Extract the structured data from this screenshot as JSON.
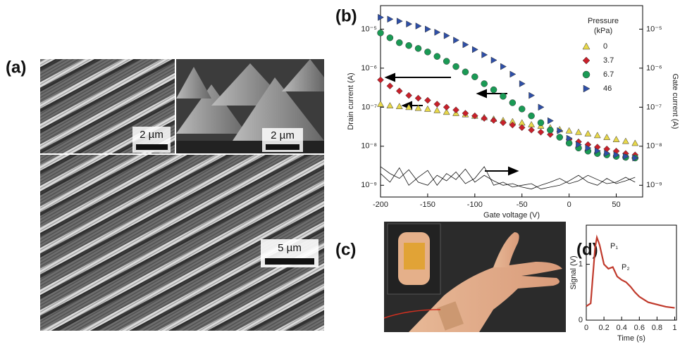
{
  "panels": [
    "(a)",
    "(b)",
    "(c)",
    "(d)"
  ],
  "images": [
    {
      "scale_bar": "2 µm"
    },
    {
      "scale_bar": "2 µm"
    },
    {
      "scale_bar": "5 µm"
    }
  ],
  "chart_data": [
    {
      "type": "scatter",
      "log_scale": true,
      "x_label": "Gate voltage (V)",
      "y_label": "Drain current (A)",
      "y2_label": "Gate current (A)",
      "legend_title": [
        "Pressure",
        "(kPa)"
      ],
      "legend": "upper right",
      "x": [
        -200,
        -190,
        -180,
        -170,
        -160,
        -150,
        -140,
        -130,
        -120,
        -110,
        -100,
        -90,
        -80,
        -70,
        -60,
        -50,
        -40,
        -30,
        -20,
        -10,
        0,
        10,
        20,
        30,
        40,
        50,
        60,
        70
      ],
      "series": [
        {
          "name": "0",
          "color": "#e8d84a",
          "marker": "triangle-up",
          "values": [
            1.2e-07,
            1.1e-07,
            1.05e-07,
            1e-07,
            9.5e-08,
            9e-08,
            8.3e-08,
            7.5e-08,
            7e-08,
            6.5e-08,
            6e-08,
            5.5e-08,
            5e-08,
            4.6e-08,
            4.3e-08,
            4e-08,
            3.6e-08,
            3.3e-08,
            3e-08,
            2.7e-08,
            2.5e-08,
            2.3e-08,
            2.1e-08,
            1.9e-08,
            1.7e-08,
            1.5e-08,
            1.35e-08,
            1.2e-08
          ]
        },
        {
          "name": "3.7",
          "color": "#c8202a",
          "marker": "diamond",
          "values": [
            5e-07,
            3.5e-07,
            2.6e-07,
            2e-07,
            1.7e-07,
            1.5e-07,
            1.2e-07,
            1e-07,
            8.5e-08,
            7e-08,
            6e-08,
            5.2e-08,
            4.6e-08,
            4e-08,
            3.5e-08,
            3e-08,
            2.6e-08,
            2.3e-08,
            2e-08,
            1.7e-08,
            1.5e-08,
            1.3e-08,
            1.1e-08,
            9.5e-09,
            8.5e-09,
            7.5e-09,
            6.5e-09,
            6e-09
          ]
        },
        {
          "name": "6.7",
          "color": "#1a9a55",
          "marker": "circle",
          "values": [
            8e-06,
            6e-06,
            4.5e-06,
            3.8e-06,
            3.2e-06,
            2.6e-06,
            2e-06,
            1.5e-06,
            1.1e-06,
            8e-07,
            6e-07,
            4e-07,
            2.8e-07,
            1.9e-07,
            1.3e-07,
            9e-08,
            6e-08,
            4e-08,
            2.6e-08,
            1.7e-08,
            1.2e-08,
            9e-09,
            7.5e-09,
            6.5e-09,
            6e-09,
            5.5e-09,
            5.2e-09,
            5e-09
          ]
        },
        {
          "name": "46",
          "color": "#2e4fa8",
          "marker": "triangle-right",
          "values": [
            2e-05,
            1.8e-05,
            1.6e-05,
            1.35e-05,
            1.2e-05,
            1e-05,
            8.3e-06,
            6.8e-06,
            5.2e-06,
            4e-06,
            3e-06,
            2.2e-06,
            1.6e-06,
            1.1e-06,
            7e-07,
            4e-07,
            2e-07,
            1e-07,
            4.5e-08,
            2.5e-08,
            1.6e-08,
            1.1e-08,
            9e-09,
            7.6e-09,
            6.6e-09,
            6e-09,
            5.5e-09,
            5e-09
          ]
        }
      ],
      "gate_series": [
        {
          "axis": "y2",
          "color": "#111",
          "values": [
            3e-09,
            2e-09,
            1.5e-09,
            2.5e-09,
            1.2e-09,
            1e-09,
            1.8e-09,
            1.3e-09,
            2.2e-09,
            1.1e-09,
            1.5e-09,
            3e-09,
            1e-09,
            1.2e-09,
            9e-10,
            1e-09,
            1.1e-09,
            8e-10,
            9e-10,
            1e-09,
            1.3e-09,
            1.8e-09,
            1.2e-09,
            1e-09,
            1.5e-09,
            1.1e-09,
            1.3e-09,
            1.6e-09
          ]
        },
        {
          "axis": "y2",
          "color": "#111",
          "values": [
            2e-09,
            1.2e-09,
            2.8e-09,
            1e-09,
            1.6e-09,
            2.4e-09,
            1e-09,
            2e-09,
            1.4e-09,
            2.6e-09,
            1.2e-09,
            1.8e-09,
            1.3e-09,
            1e-09,
            1.1e-09,
            9e-10,
            8e-10,
            1e-09,
            1.2e-09,
            1.5e-09,
            1.1e-09,
            1.3e-09,
            1.8e-09,
            1.4e-09,
            1.1e-09,
            1.2e-09,
            1.6e-09,
            1.2e-09
          ]
        }
      ],
      "xlim": [
        -200,
        78
      ],
      "xticks": [
        -200,
        -150,
        -100,
        -50,
        0,
        50
      ],
      "ylim": [
        5e-10,
        4e-05
      ],
      "yticks": [
        {
          "value": 1e-09,
          "label": "10⁻⁹"
        },
        {
          "value": 1e-08,
          "label": "10⁻⁸"
        },
        {
          "value": 1e-07,
          "label": "10⁻⁷"
        },
        {
          "value": 1e-06,
          "label": "10⁻⁶"
        },
        {
          "value": 1e-05,
          "label": "10⁻⁵"
        }
      ],
      "y2lim": [
        5e-10,
        4e-05
      ],
      "y2ticks": [
        {
          "value": 1e-09,
          "label": "10⁻⁹"
        },
        {
          "value": 1e-08,
          "label": "10⁻⁸"
        },
        {
          "value": 1e-07,
          "label": "10⁻⁷"
        },
        {
          "value": 1e-06,
          "label": "10⁻⁶"
        },
        {
          "value": 1e-05,
          "label": "10⁻⁵"
        }
      ]
    },
    {
      "type": "line",
      "x_label": "Time (s)",
      "y_label": "Signal (V)",
      "annotations": [
        "P₁",
        "P₂"
      ],
      "x": [
        0,
        0.05,
        0.08,
        0.1,
        0.12,
        0.15,
        0.2,
        0.25,
        0.3,
        0.35,
        0.4,
        0.45,
        0.5,
        0.55,
        0.6,
        0.7,
        0.8,
        0.9,
        1.0
      ],
      "series": [
        {
          "color": "#c0392b",
          "values": [
            0.25,
            0.3,
            0.9,
            1.3,
            1.48,
            1.35,
            1.0,
            0.92,
            0.95,
            0.78,
            0.72,
            0.68,
            0.6,
            0.5,
            0.42,
            0.32,
            0.28,
            0.24,
            0.22
          ]
        }
      ],
      "xlim": [
        0,
        1.02
      ],
      "xticks": [
        0,
        0.2,
        0.4,
        0.6,
        0.8,
        1
      ],
      "ylim": [
        0,
        1.7
      ],
      "yticks": [
        0,
        1
      ]
    }
  ]
}
